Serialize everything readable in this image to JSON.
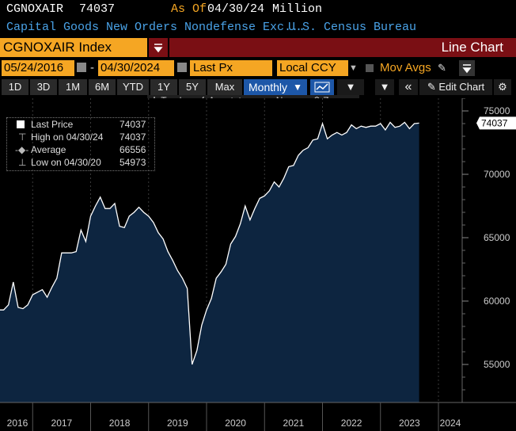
{
  "header": {
    "ticker": "CGNOXAIR",
    "last_value": "74037",
    "asof_label": "As Of",
    "asof_date": "04/30/24",
    "unit": "Million",
    "description": "Capital Goods New Orders Nondefense Exc...",
    "source": "U.S. Census Bureau"
  },
  "security_bar": {
    "index_label": "CGNOXAIR Index",
    "chart_type_label": "Line Chart"
  },
  "controls": {
    "start_date": "05/24/2016",
    "end_date": "04/30/2024",
    "date_separator": "-",
    "field": "Last Px",
    "currency": "Local CCY",
    "studies": "Mov Avgs",
    "edit_chart": "Edit Chart"
  },
  "periods": [
    "1D",
    "3D",
    "1M",
    "6M",
    "YTD",
    "1Y",
    "5Y",
    "Max"
  ],
  "frequency": "Monthly",
  "tools": [
    "Track",
    "Annotate",
    "News",
    "Zoom"
  ],
  "legend": [
    {
      "icon": "square",
      "label": "Last Price",
      "value": "74037"
    },
    {
      "icon": "high",
      "label": "High on 04/30/24",
      "value": "74037"
    },
    {
      "icon": "avg",
      "label": "Average",
      "value": "66556"
    },
    {
      "icon": "low",
      "label": "Low on 04/30/20",
      "value": "54973"
    }
  ],
  "price_tag": "74037",
  "chart_data": {
    "type": "area",
    "x_tick_labels": [
      "2016",
      "2017",
      "2018",
      "2019",
      "2020",
      "2021",
      "2022",
      "2023",
      "2024"
    ],
    "y_ticks": [
      55000,
      60000,
      65000,
      70000,
      75000
    ],
    "ylim": [
      52000,
      76000
    ],
    "series": [
      {
        "name": "Last Price",
        "values": [
          59300,
          59300,
          59700,
          61500,
          59500,
          59400,
          59700,
          60500,
          60700,
          60900,
          60300,
          61100,
          61800,
          63800,
          63800,
          63800,
          63900,
          65600,
          64700,
          66700,
          67500,
          68200,
          67300,
          67300,
          67700,
          65900,
          65800,
          66700,
          67000,
          67400,
          67000,
          66700,
          66200,
          65400,
          64900,
          63900,
          63200,
          62400,
          61800,
          61000,
          55000,
          56100,
          58100,
          59300,
          60200,
          61800,
          62300,
          62900,
          64500,
          65100,
          66100,
          67500,
          66400,
          67300,
          68100,
          68300,
          68700,
          69400,
          69000,
          69700,
          70600,
          70700,
          71500,
          71900,
          72100,
          72700,
          72800,
          74000,
          72800,
          73100,
          73300,
          73100,
          73300,
          73900,
          73600,
          73800,
          73700,
          73800,
          73800,
          74000,
          73500,
          74100,
          73700,
          73800,
          74100,
          73600,
          74000,
          74037
        ],
        "color": "#ffffff",
        "fill": "#0d2540"
      }
    ],
    "x_start": "2016-06",
    "x_end": "2024-04",
    "grid": true,
    "legend_position": "top-left"
  },
  "colors": {
    "orange": "#f5a623",
    "blue": "#4aa3e8",
    "red_bar": "#7a0f14",
    "area_fill": "#0d2540"
  }
}
